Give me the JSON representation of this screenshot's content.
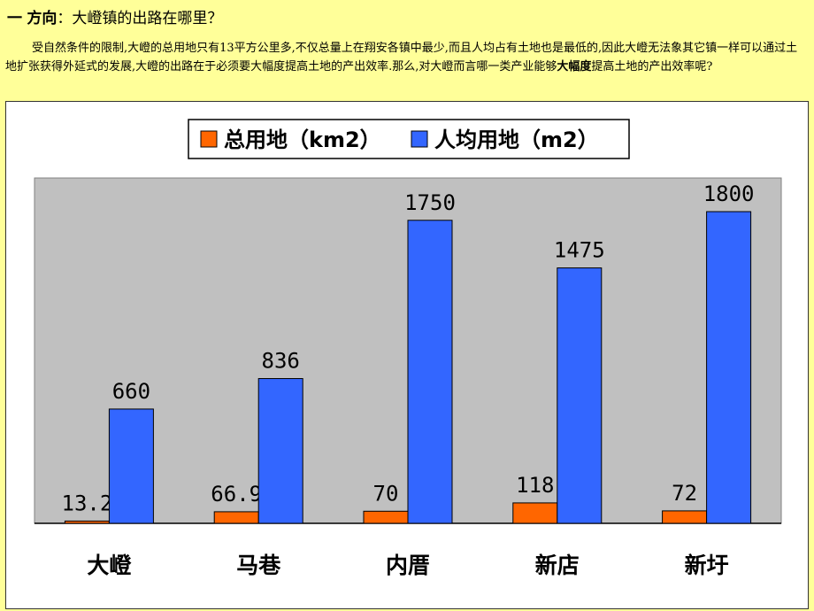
{
  "header": {
    "prefix": "一",
    "label": "方向",
    "colon": "：",
    "question": "大嶝镇的出路在哪里？"
  },
  "paragraph": {
    "text_before_bold": "受自然条件的限制,大嶝的总用地只有13平方公里多,不仅总量上在翔安各镇中最少,而且人均占有土地也是最低的,因此大嶝无法象其它镇一样可以通过土地扩张获得外延式的发展,大嶝的出路在于必须要大幅度提高土地的产出效率.那么,对大嶝而言哪一类产业能够",
    "bold_text": "大幅度",
    "text_after_bold": "提高土地的产出效率呢?"
  },
  "colors": {
    "background": "#ffff99",
    "plot_area": "#c0c0c0",
    "series_total": "#ff6600",
    "series_per_capita": "#3366ff"
  },
  "chart_data": {
    "type": "bar",
    "categories": [
      "大嶝",
      "马巷",
      "内厝",
      "新店",
      "新圩"
    ],
    "series": [
      {
        "name": "总用地（km2）",
        "color": "#ff6600",
        "values": [
          13.2,
          66.9,
          70,
          118,
          72
        ],
        "labels": [
          "13.2",
          "66.9",
          "70",
          "118",
          "72"
        ]
      },
      {
        "name": "人均用地（m2）",
        "color": "#3366ff",
        "values": [
          660,
          836,
          1750,
          1475,
          1800
        ],
        "labels": [
          "660",
          "836",
          "1750",
          "1475",
          "1800"
        ]
      }
    ],
    "legend_position": "top-center",
    "grid": false,
    "y_axis_visible": false
  }
}
